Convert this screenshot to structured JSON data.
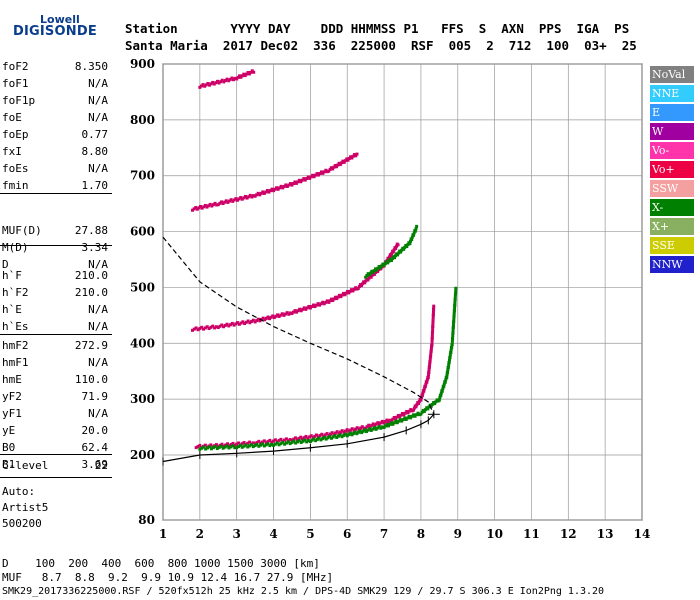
{
  "logo": {
    "line1": "Lowell",
    "line2": "DIGISONDE"
  },
  "header": {
    "labels": "Station       YYYY DAY    DDD HHMMSS P1   FFS  S  AXN  PPS  IGA  PS",
    "values": "Santa Maria  2017 Dec02  336  225000  RSF  005  2  712  100  03+  25"
  },
  "params": [
    {
      "name": "foF2",
      "value": "8.350"
    },
    {
      "name": "foF1",
      "value": "N/A"
    },
    {
      "name": "foF1p",
      "value": "N/A"
    },
    {
      "name": "foE",
      "value": "N/A"
    },
    {
      "name": "foEp",
      "value": "0.77"
    },
    {
      "name": "fxI",
      "value": "8.80"
    },
    {
      "name": "foEs",
      "value": "N/A"
    },
    {
      "name": "fmin",
      "value": "1.70"
    },
    {
      "name": "MUF(D)",
      "value": "27.88"
    },
    {
      "name": "M(D)",
      "value": "3.34"
    },
    {
      "name": "D",
      "value": "N/A"
    },
    {
      "name": "h`F",
      "value": "210.0"
    },
    {
      "name": "h`F2",
      "value": "210.0"
    },
    {
      "name": "h`E",
      "value": "N/A"
    },
    {
      "name": "h`Es",
      "value": "N/A"
    },
    {
      "name": "hmF2",
      "value": "272.9"
    },
    {
      "name": "hmF1",
      "value": "N/A"
    },
    {
      "name": "hmE",
      "value": "110.0"
    },
    {
      "name": "yF2",
      "value": "71.9"
    },
    {
      "name": "yF1",
      "value": "N/A"
    },
    {
      "name": "yE",
      "value": "20.0"
    },
    {
      "name": "B0",
      "value": "62.4"
    },
    {
      "name": "B1",
      "value": "3.69"
    },
    {
      "name": "C-level",
      "value": "22"
    }
  ],
  "auto": {
    "line1": "Auto:",
    "line2": "Artist5",
    "line3": "500200"
  },
  "legend": [
    {
      "label": "NoVal",
      "color": "#808080"
    },
    {
      "label": "NNE",
      "color": "#33ccff"
    },
    {
      "label": "E",
      "color": "#3399ff"
    },
    {
      "label": "W",
      "color": "#a000a0"
    },
    {
      "label": "Vo-",
      "color": "#ff33aa"
    },
    {
      "label": "Vo+",
      "color": "#ee0044"
    },
    {
      "label": "SSW",
      "color": "#f4a0a0"
    },
    {
      "label": "X-",
      "color": "#008000"
    },
    {
      "label": "X+",
      "color": "#88b060"
    },
    {
      "label": "SSE",
      "color": "#cccc00"
    },
    {
      "label": "NNW",
      "color": "#2020cc"
    }
  ],
  "chart_data": {
    "type": "scatter",
    "x_ticks": [
      "1",
      "2",
      "3",
      "4",
      "5",
      "6",
      "7",
      "8",
      "9",
      "10",
      "11",
      "12",
      "13",
      "14"
    ],
    "y_ticks": [
      "80",
      "200",
      "300",
      "400",
      "500",
      "600",
      "700",
      "800",
      "900"
    ],
    "xlim": [
      1,
      14
    ],
    "ylim": [
      80,
      900
    ],
    "grid": true,
    "traces": [
      {
        "name": "O-trace F2",
        "color": "#cc0066",
        "points": [
          [
            1.9,
            215
          ],
          [
            2.5,
            217
          ],
          [
            3.5,
            222
          ],
          [
            4.5,
            228
          ],
          [
            5.5,
            237
          ],
          [
            6.5,
            250
          ],
          [
            7.2,
            263
          ],
          [
            7.8,
            282
          ],
          [
            8.0,
            300
          ],
          [
            8.2,
            340
          ],
          [
            8.3,
            400
          ],
          [
            8.35,
            470
          ]
        ]
      },
      {
        "name": "X-trace F2",
        "color": "#008000",
        "points": [
          [
            2.0,
            212
          ],
          [
            3.0,
            215
          ],
          [
            4.0,
            219
          ],
          [
            5.0,
            226
          ],
          [
            6.0,
            236
          ],
          [
            7.0,
            251
          ],
          [
            8.0,
            275
          ],
          [
            8.5,
            300
          ],
          [
            8.7,
            340
          ],
          [
            8.85,
            400
          ],
          [
            8.95,
            500
          ]
        ]
      },
      {
        "name": "2nd hop",
        "color": "#cc0066",
        "points": [
          [
            1.8,
            425
          ],
          [
            2.5,
            430
          ],
          [
            3.5,
            440
          ],
          [
            4.5,
            455
          ],
          [
            5.5,
            475
          ],
          [
            6.3,
            500
          ],
          [
            7.0,
            540
          ],
          [
            7.4,
            580
          ]
        ]
      },
      {
        "name": "3rd hop",
        "color": "#cc0066",
        "points": [
          [
            1.8,
            640
          ],
          [
            2.5,
            650
          ],
          [
            3.5,
            665
          ],
          [
            4.5,
            685
          ],
          [
            5.5,
            710
          ],
          [
            6.3,
            740
          ]
        ]
      },
      {
        "name": "4th hop",
        "color": "#cc0066",
        "points": [
          [
            2.0,
            860
          ],
          [
            3.0,
            875
          ],
          [
            3.5,
            888
          ]
        ]
      },
      {
        "name": "X 2nd hop",
        "color": "#008000",
        "points": [
          [
            6.5,
            520
          ],
          [
            7.2,
            550
          ],
          [
            7.7,
            580
          ],
          [
            7.9,
            610
          ]
        ]
      }
    ],
    "profile": {
      "points": [
        [
          1,
          590
        ],
        [
          2,
          510
        ],
        [
          3,
          465
        ],
        [
          4,
          430
        ],
        [
          5,
          400
        ],
        [
          6,
          372
        ],
        [
          7,
          340
        ],
        [
          7.8,
          312
        ],
        [
          8.2,
          295
        ],
        [
          8.35,
          272.9
        ]
      ]
    },
    "true_height": {
      "points": [
        [
          1,
          188
        ],
        [
          2,
          200
        ],
        [
          3,
          203
        ],
        [
          4,
          207
        ],
        [
          5,
          213
        ],
        [
          6,
          220
        ],
        [
          7,
          232
        ],
        [
          7.6,
          244
        ],
        [
          8.0,
          255
        ],
        [
          8.2,
          262
        ],
        [
          8.35,
          272.9
        ]
      ]
    }
  },
  "bottom": {
    "row1": "D    100  200  400  600  800 1000 1500 3000 [km]",
    "row2": "MUF   8.7  8.8  9.2  9.9 10.9 12.4 16.7 27.9 [MHz]",
    "row3": "SMK29_2017336225000.RSF / 520fx512h 25 kHz 2.5 km / DPS-4D SMK29 129 / 29.7 S 306.3 E Ion2Png 1.3.20"
  }
}
